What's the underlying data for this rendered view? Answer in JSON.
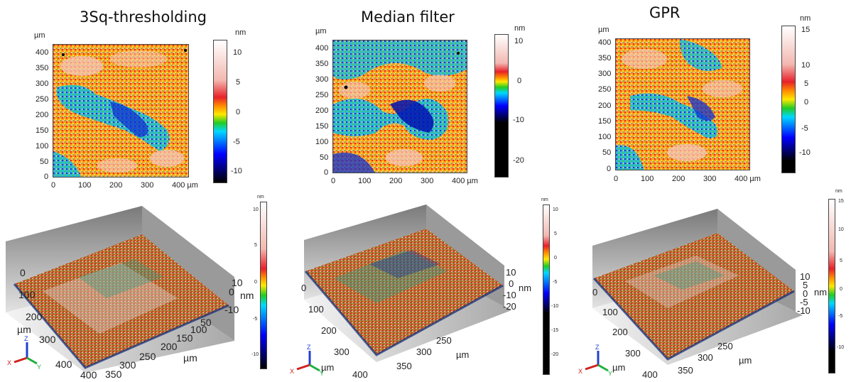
{
  "panels": [
    {
      "title": "3Sq-thresholding",
      "map_unit": "µm",
      "x_ticks": [
        "0",
        "100",
        "200",
        "300",
        "400 µm"
      ],
      "y_ticks": [
        "400",
        "350",
        "300",
        "250",
        "200",
        "150",
        "100",
        "50",
        "0"
      ],
      "colorbar_unit": "nm",
      "colorbar_ticks": [
        "10",
        "5",
        "0",
        "-5",
        "-10"
      ],
      "surface": {
        "colorbar_unit": "nm",
        "colorbar_ticks": [
          "10",
          "5",
          "0",
          "-5",
          "-10"
        ],
        "left_axis_ticks": [
          "0",
          "100",
          "200",
          "300",
          "400"
        ],
        "left_axis_label": "µm",
        "front_axis_ticks": [
          "50",
          "100",
          "150",
          "200",
          "250",
          "300",
          "350",
          "400"
        ],
        "front_axis_label": "µm",
        "z_axis_ticks": [
          "10",
          "0",
          "-10"
        ],
        "z_axis_label": "nm"
      }
    },
    {
      "title": "Median filter",
      "map_unit": "µm",
      "x_ticks": [
        "0",
        "100",
        "200",
        "300",
        "400 µm"
      ],
      "y_ticks": [
        "400",
        "350",
        "300",
        "250",
        "200",
        "150",
        "100",
        "50",
        "0"
      ],
      "colorbar_unit": "nm",
      "colorbar_ticks": [
        "10",
        "0",
        "-10",
        "-20"
      ],
      "surface": {
        "colorbar_unit": "nm",
        "colorbar_ticks": [
          "10",
          "5",
          "0",
          "-5",
          "-10",
          "-15",
          "-20"
        ],
        "left_axis_ticks": [
          "0",
          "100",
          "200",
          "300",
          "400"
        ],
        "left_axis_label": "µm",
        "front_axis_ticks": [
          "250",
          "300",
          "350"
        ],
        "front_axis_label": "µm",
        "z_axis_ticks": [
          "10",
          "0",
          "-10",
          "-20"
        ],
        "z_axis_label": "nm"
      }
    },
    {
      "title": "GPR",
      "map_unit": "µm",
      "x_ticks": [
        "0",
        "100",
        "200",
        "300",
        "400 µm"
      ],
      "y_ticks": [
        "400",
        "350",
        "300",
        "250",
        "200",
        "150",
        "100",
        "50",
        "0"
      ],
      "colorbar_unit": "nm",
      "colorbar_ticks": [
        "15",
        "10",
        "5",
        "0",
        "-5",
        "-10"
      ],
      "surface": {
        "colorbar_unit": "nm",
        "colorbar_ticks": [
          "15",
          "10",
          "5",
          "0",
          "-5",
          "-10"
        ],
        "left_axis_ticks": [
          "0",
          "100",
          "200",
          "300",
          "400"
        ],
        "left_axis_label": "µm",
        "front_axis_ticks": [
          "250",
          "300",
          "350"
        ],
        "front_axis_label": "µm",
        "z_axis_ticks": [
          "10",
          "5",
          "0",
          "-5",
          "-10"
        ],
        "z_axis_label": "nm"
      }
    }
  ],
  "axis_icon": {
    "x": "X",
    "y": "Y",
    "z": "Z"
  },
  "colors": {
    "low": "#000000",
    "blue": "#0000ff",
    "cyan": "#00d8ff",
    "green": "#22cc22",
    "yellow": "#ffe800",
    "orange": "#ff8a00",
    "red": "#e8202a",
    "pink": "#f2b8b0",
    "high": "#ffffff"
  }
}
